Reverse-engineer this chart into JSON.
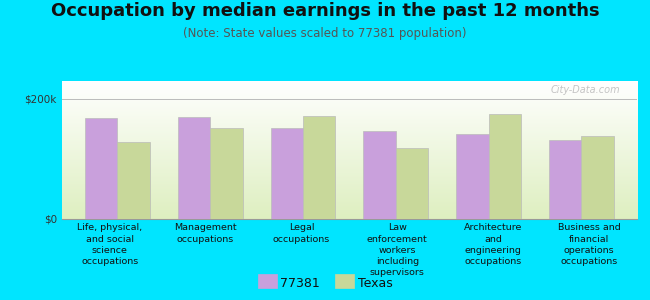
{
  "title": "Occupation by median earnings in the past 12 months",
  "subtitle": "(Note: State values scaled to 77381 population)",
  "categories": [
    "Life, physical,\nand social\nscience\noccupations",
    "Management\noccupations",
    "Legal\noccupations",
    "Law\nenforcement\nworkers\nincluding\nsupervisors",
    "Architecture\nand\nengineering\noccupations",
    "Business and\nfinancial\noperations\noccupations"
  ],
  "values_77381": [
    168000,
    170000,
    152000,
    147000,
    142000,
    132000
  ],
  "values_texas": [
    128000,
    152000,
    172000,
    118000,
    175000,
    138000
  ],
  "color_77381": "#c9a0dc",
  "color_texas": "#c8d89a",
  "bar_edge_color": "#bbbbbb",
  "ylim": [
    0,
    230000
  ],
  "yticks": [
    0,
    200000
  ],
  "ytick_labels": [
    "$0",
    "$200k"
  ],
  "background_top": "#ffffff",
  "background_bottom": "#deefc0",
  "outer_background": "#00e5ff",
  "legend_labels": [
    "77381",
    "Texas"
  ],
  "watermark": "City-Data.com",
  "bar_width": 0.35,
  "title_fontsize": 13,
  "subtitle_fontsize": 8.5,
  "tick_fontsize": 7.5,
  "cat_fontsize": 6.8,
  "legend_fontsize": 9
}
